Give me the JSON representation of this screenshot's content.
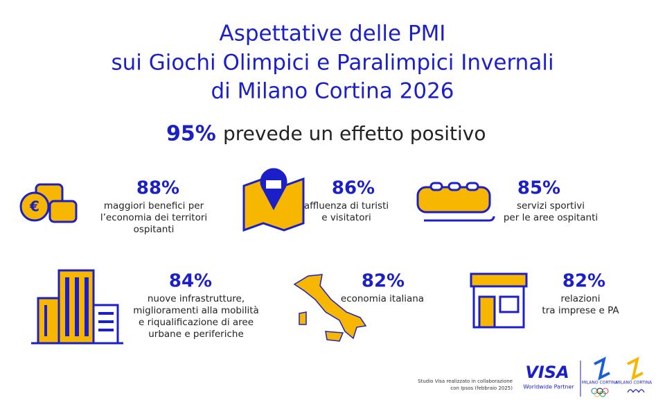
{
  "header": {
    "title": [
      "Aspettative delle PMI",
      "sui Giochi Olimpici e Paralimpici Invernali",
      "di Milano Cortina 2026"
    ]
  },
  "headline": {
    "value": "95%",
    "text": "prevede un effetto positivo"
  },
  "items": [
    {
      "value": "88%",
      "lines": [
        "maggiori benefici per",
        "l’economia dei territori",
        "ospitanti"
      ]
    },
    {
      "value": "86%",
      "lines": [
        "affluenza di turisti",
        "e visitatori"
      ]
    },
    {
      "value": "85%",
      "lines": [
        "servizi sportivi",
        "per le aree ospitanti"
      ]
    },
    {
      "value": "84%",
      "lines": [
        "nuove infrastrutture,",
        "miglioramenti alla mobilità",
        "e riqualificazione di aree",
        "urbane e periferiche"
      ]
    },
    {
      "value": "82%",
      "lines": [
        "economia italiana"
      ]
    },
    {
      "value": "82%",
      "lines": [
        "relazioni",
        "tra imprese e PA"
      ]
    }
  ],
  "footer": {
    "note": [
      "Studio Visa realizzato in collaborazione",
      "con Ipsos (febbraio 2025)"
    ],
    "brand": "VISA",
    "partner": "Worldwide Partner",
    "logos": [
      "MILANO CORTINA",
      "MILANO CORTINA"
    ]
  }
}
